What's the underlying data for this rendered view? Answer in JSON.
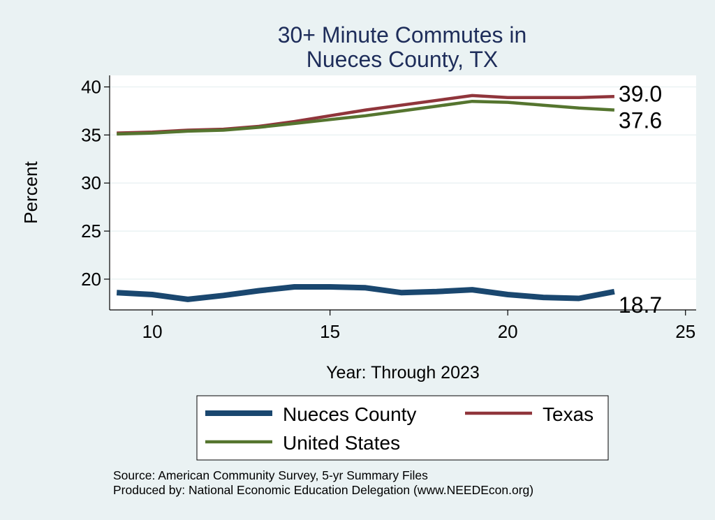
{
  "chart_data": {
    "type": "line",
    "title_lines": [
      "30+ Minute Commutes in",
      "Nueces County, TX"
    ],
    "xlabel": "Year: Through 2023",
    "ylabel": "Percent",
    "xlim": [
      8.8,
      25.3
    ],
    "ylim": [
      16.8,
      41.2
    ],
    "x_ticks": [
      10,
      15,
      20,
      25
    ],
    "y_ticks": [
      20,
      25,
      30,
      35,
      40
    ],
    "grid": "horizontal",
    "legend_position": "bottom",
    "x": [
      9,
      10,
      11,
      12,
      13,
      14,
      15,
      16,
      17,
      18,
      19,
      20,
      21,
      22,
      23
    ],
    "series": [
      {
        "name": "Nueces County",
        "color": "#1A476F",
        "values": [
          18.6,
          18.4,
          17.9,
          18.3,
          18.8,
          19.2,
          19.2,
          19.1,
          18.6,
          18.7,
          18.9,
          18.4,
          18.1,
          18.0,
          18.7
        ],
        "end_label": "18.7"
      },
      {
        "name": "Texas",
        "color": "#90353B",
        "values": [
          35.2,
          35.3,
          35.5,
          35.6,
          35.9,
          36.4,
          37.0,
          37.6,
          38.1,
          38.6,
          39.1,
          38.9,
          38.9,
          38.9,
          39.0
        ],
        "end_label": "39.0"
      },
      {
        "name": "United States",
        "color": "#55752F",
        "values": [
          35.1,
          35.2,
          35.4,
          35.5,
          35.8,
          36.2,
          36.6,
          37.0,
          37.5,
          38.0,
          38.5,
          38.4,
          38.1,
          37.8,
          37.6
        ],
        "end_label": "37.6"
      }
    ]
  },
  "source": {
    "line1": "Source: American Community Survey, 5-yr Summary Files",
    "line2": "Produced by: National Economic Education Delegation (www.NEEDEcon.org)"
  }
}
